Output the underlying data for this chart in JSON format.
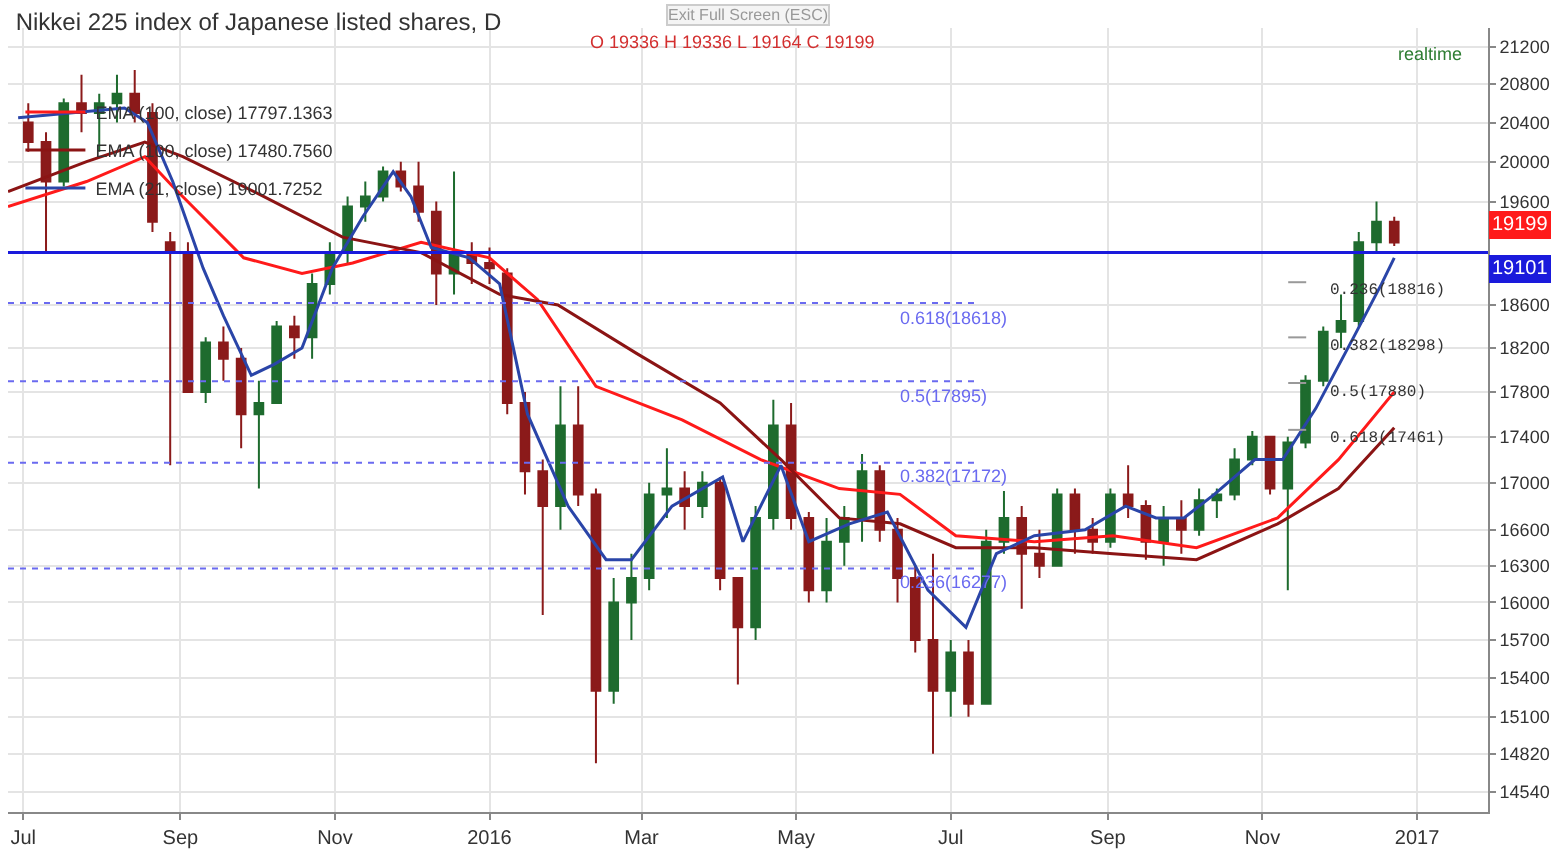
{
  "chart_data": {
    "type": "candlestick",
    "title": "Nikkei 225 index of Japanese listed shares, D",
    "annotations": [
      "O 19336 H 19336 L 19164 C 19199",
      "Exit Full Screen (ESC)",
      "realtime",
      "19199"
    ],
    "log": true,
    "grid": true,
    "legend": "top left",
    "xlim": [
      "2015-06-25",
      "2017-01-29"
    ],
    "xticks": [
      {
        "value": "2015-07-01",
        "label": "Jul"
      },
      {
        "value": "2015-09-01",
        "label": "Sep"
      },
      {
        "value": "2015-11-01",
        "label": "Nov"
      },
      {
        "value": "2016-01-01",
        "label": "2016"
      },
      {
        "value": "2016-03-01",
        "label": "Mar"
      },
      {
        "value": "2016-05-01",
        "label": "May"
      },
      {
        "value": "2016-07-01",
        "label": "Jul"
      },
      {
        "value": "2016-09-01",
        "label": "Sep"
      },
      {
        "value": "2016-11-01",
        "label": "Nov"
      },
      {
        "value": "2017-01-01",
        "label": "2017"
      }
    ],
    "ylim": [
      14390,
      21400
    ],
    "yticks": [
      14540,
      14820,
      15100,
      15400,
      15700,
      16000,
      16300,
      16600,
      17000,
      17400,
      17800,
      18200,
      18600,
      19600,
      20000,
      20400,
      20800,
      21200
    ],
    "ref_lines": [
      {
        "axis": "y",
        "value": 19101,
        "label": "19101",
        "color": "#1a1adc",
        "line_style": "solid"
      },
      {
        "axis": "y",
        "value": 18618,
        "label": "0.618(18618)",
        "color": "#6a6af0",
        "line_style": "dotted"
      },
      {
        "axis": "y",
        "value": 17895,
        "label": "0.5(17895)",
        "color": "#6a6af0",
        "line_style": "dotted"
      },
      {
        "axis": "y",
        "value": 17172,
        "label": "0.382(17172)",
        "color": "#6a6af0",
        "line_style": "dotted"
      },
      {
        "axis": "y",
        "value": 16277,
        "label": "0.236(16277)",
        "color": "#6a6af0",
        "line_style": "dotted"
      },
      {
        "axis": "y",
        "value": 18816,
        "label": "0.236(18816)",
        "color": "#999999",
        "line_style": "dashed"
      },
      {
        "axis": "y",
        "value": 18298,
        "label": "0.382(18298)",
        "color": "#999999",
        "line_style": "dashed"
      },
      {
        "axis": "y",
        "value": 17880,
        "label": "0.5(17880)",
        "color": "#999999",
        "line_style": "dashed"
      },
      {
        "axis": "y",
        "value": 17461,
        "label": "0.618(17461)",
        "color": "#999999",
        "line_style": "dashed"
      }
    ],
    "series": [
      {
        "type": "line",
        "name": "EMA (100, close) 17797.1363",
        "color": "#ff1a1a",
        "x": [
          "2015-06-25",
          "2015-07-26",
          "2015-08-18",
          "2015-08-29",
          "2015-09-26",
          "2015-10-19",
          "2015-11-08",
          "2015-12-05",
          "2016-01-01",
          "2016-01-20",
          "2016-02-12",
          "2016-03-17",
          "2016-04-17",
          "2016-05-18",
          "2016-06-11",
          "2016-07-03",
          "2016-08-03",
          "2016-09-03",
          "2016-10-06",
          "2016-11-07",
          "2016-12-01",
          "2016-12-23"
        ],
        "values": [
          19550,
          19800,
          20050,
          19750,
          19050,
          18900,
          19000,
          19200,
          19050,
          18650,
          17850,
          17550,
          17200,
          16950,
          16900,
          16550,
          16500,
          16550,
          16450,
          16700,
          17200,
          17800
        ]
      },
      {
        "type": "line",
        "name": "EMA (100, close) 17480.7560",
        "color": "#8b1414",
        "x": [
          "2015-06-25",
          "2015-07-26",
          "2015-08-18",
          "2015-09-02",
          "2015-10-04",
          "2015-11-04",
          "2015-12-05",
          "2016-01-05",
          "2016-01-28",
          "2016-02-28",
          "2016-04-01",
          "2016-04-25",
          "2016-05-18",
          "2016-06-11",
          "2016-07-03",
          "2016-08-03",
          "2016-09-03",
          "2016-10-06",
          "2016-11-07",
          "2016-12-01",
          "2016-12-23"
        ],
        "values": [
          19700,
          20000,
          20200,
          20050,
          19650,
          19250,
          19100,
          18700,
          18600,
          18150,
          17700,
          17200,
          16700,
          16650,
          16450,
          16450,
          16400,
          16350,
          16650,
          16950,
          17480
        ]
      },
      {
        "type": "line",
        "name": "EMA (21, close) 19001.7252",
        "color": "#2a45a8",
        "x": [
          "2015-06-29",
          "2015-08-10",
          "2015-08-19",
          "2015-08-29",
          "2015-09-10",
          "2015-09-18",
          "2015-09-29",
          "2015-10-08",
          "2015-10-19",
          "2015-10-31",
          "2015-11-12",
          "2015-11-24",
          "2015-12-01",
          "2015-12-09",
          "2015-12-24",
          "2016-01-05",
          "2016-01-16",
          "2016-02-01",
          "2016-02-16",
          "2016-02-26",
          "2016-03-13",
          "2016-04-02",
          "2016-04-10",
          "2016-04-25",
          "2016-05-06",
          "2016-05-22",
          "2016-06-06",
          "2016-06-22",
          "2016-07-07",
          "2016-07-19",
          "2016-08-03",
          "2016-08-23",
          "2016-09-08",
          "2016-09-20",
          "2016-10-01",
          "2016-10-13",
          "2016-10-29",
          "2016-11-09",
          "2016-11-22",
          "2016-12-07",
          "2016-12-18",
          "2016-12-23"
        ],
        "values": [
          20450,
          20550,
          20400,
          19800,
          18950,
          18500,
          17950,
          18050,
          18200,
          18950,
          19450,
          19900,
          19650,
          19150,
          19050,
          18800,
          17600,
          16800,
          16350,
          16350,
          16800,
          17050,
          16500,
          17150,
          16500,
          16650,
          16750,
          16100,
          15800,
          16400,
          16550,
          16600,
          16800,
          16700,
          16700,
          16900,
          17200,
          17200,
          17650,
          18300,
          18800,
          19050
        ]
      },
      {
        "type": "candlestick",
        "colors": [
          "#8b1a1a",
          "#8b1a1a",
          "#1e6b2e",
          "#8b1a1a",
          "#1e6b2e",
          "#1e6b2e",
          "#8b1a1a",
          "#8b1a1a",
          "#8b1a1a",
          "#8b1a1a",
          "#1e6b2e",
          "#8b1a1a",
          "#8b1a1a",
          "#1e6b2e",
          "#1e6b2e",
          "#8b1a1a",
          "#1e6b2e",
          "#1e6b2e",
          "#1e6b2e",
          "#1e6b2e",
          "#1e6b2e",
          "#8b1a1a",
          "#8b1a1a",
          "#8b1a1a",
          "#1e6b2e",
          "#8b1a1a",
          "#8b1a1a",
          "#8b1a1a",
          "#8b1a1a",
          "#8b1a1a",
          "#1e6b2e",
          "#8b1a1a",
          "#8b1a1a",
          "#1e6b2e",
          "#1e6b2e",
          "#1e6b2e",
          "#1e6b2e",
          "#8b1a1a",
          "#1e6b2e",
          "#8b1a1a",
          "#8b1a1a",
          "#1e6b2e",
          "#1e6b2e",
          "#8b1a1a",
          "#8b1a1a",
          "#1e6b2e",
          "#1e6b2e",
          "#1e6b2e",
          "#8b1a1a",
          "#8b1a1a",
          "#8b1a1a",
          "#8b1a1a",
          "#1e6b2e",
          "#8b1a1a",
          "#1e6b2e",
          "#1e6b2e",
          "#8b1a1a",
          "#8b1a1a",
          "#1e6b2e",
          "#8b1a1a",
          "#8b1a1a",
          "#1e6b2e",
          "#8b1a1a",
          "#8b1a1a",
          "#1e6b2e",
          "#8b1a1a",
          "#1e6b2e",
          "#1e6b2e",
          "#1e6b2e",
          "#1e6b2e",
          "#8b1a1a",
          "#1e6b2e",
          "#1e6b2e",
          "#1e6b2e",
          "#1e6b2e",
          "#1e6b2e",
          "#1e6b2e",
          "#8b1a1a"
        ],
        "x": [
          "2015-07-03",
          "2015-07-10",
          "2015-07-17",
          "2015-07-24",
          "2015-07-31",
          "2015-08-07",
          "2015-08-14",
          "2015-08-21",
          "2015-08-28",
          "2015-09-04",
          "2015-09-11",
          "2015-09-18",
          "2015-09-25",
          "2015-10-02",
          "2015-10-09",
          "2015-10-16",
          "2015-10-23",
          "2015-10-30",
          "2015-11-06",
          "2015-11-13",
          "2015-11-20",
          "2015-11-27",
          "2015-12-04",
          "2015-12-11",
          "2015-12-18",
          "2015-12-25",
          "2016-01-01",
          "2016-01-08",
          "2016-01-15",
          "2016-01-22",
          "2016-01-29",
          "2016-02-05",
          "2016-02-12",
          "2016-02-19",
          "2016-02-26",
          "2016-03-04",
          "2016-03-11",
          "2016-03-18",
          "2016-03-25",
          "2016-04-01",
          "2016-04-08",
          "2016-04-15",
          "2016-04-22",
          "2016-04-29",
          "2016-05-06",
          "2016-05-13",
          "2016-05-20",
          "2016-05-27",
          "2016-06-03",
          "2016-06-10",
          "2016-06-17",
          "2016-06-24",
          "2016-07-01",
          "2016-07-08",
          "2016-07-15",
          "2016-07-22",
          "2016-07-29",
          "2016-08-05",
          "2016-08-12",
          "2016-08-19",
          "2016-08-26",
          "2016-09-02",
          "2016-09-09",
          "2016-09-16",
          "2016-09-23",
          "2016-09-30",
          "2016-10-07",
          "2016-10-14",
          "2016-10-21",
          "2016-10-28",
          "2016-11-04",
          "2016-11-11",
          "2016-11-18",
          "2016-11-25",
          "2016-12-02",
          "2016-12-09",
          "2016-12-16",
          "2016-12-23"
        ],
        "ohlc": [
          [
            20400,
            20600,
            20100,
            20200
          ],
          [
            20200,
            20300,
            19100,
            19800
          ],
          [
            19800,
            20650,
            19750,
            20600
          ],
          [
            20600,
            20900,
            20300,
            20500
          ],
          [
            20500,
            20700,
            20100,
            20600
          ],
          [
            20600,
            20900,
            20400,
            20700
          ],
          [
            20700,
            20950,
            20400,
            20500
          ],
          [
            20500,
            20600,
            19300,
            19400
          ],
          [
            19200,
            19300,
            17150,
            19100
          ],
          [
            19100,
            19200,
            17800,
            17800
          ],
          [
            17800,
            18300,
            17700,
            18250
          ],
          [
            18250,
            18400,
            17900,
            18100
          ],
          [
            18100,
            18200,
            17300,
            17600
          ],
          [
            17600,
            17900,
            16950,
            17700
          ],
          [
            17700,
            18450,
            17700,
            18400
          ],
          [
            18400,
            18500,
            18100,
            18300
          ],
          [
            18300,
            18900,
            18100,
            18800
          ],
          [
            18800,
            19200,
            18700,
            19100
          ],
          [
            19100,
            19650,
            19000,
            19550
          ],
          [
            19550,
            19800,
            19400,
            19650
          ],
          [
            19650,
            19950,
            19600,
            19900
          ],
          [
            19900,
            20000,
            19700,
            19750
          ],
          [
            19750,
            20000,
            19400,
            19500
          ],
          [
            19500,
            19600,
            18600,
            18900
          ],
          [
            18900,
            19900,
            18700,
            19100
          ],
          [
            19100,
            19200,
            18800,
            19000
          ],
          [
            19000,
            19150,
            18800,
            18950
          ],
          [
            18900,
            18950,
            17600,
            17700
          ],
          [
            17700,
            17800,
            16900,
            17100
          ],
          [
            17100,
            17200,
            15900,
            16800
          ],
          [
            16800,
            17850,
            16600,
            17500
          ],
          [
            17500,
            17850,
            16800,
            16900
          ],
          [
            16900,
            16950,
            14750,
            15300
          ],
          [
            15300,
            16200,
            15200,
            16000
          ],
          [
            16000,
            16400,
            15700,
            16200
          ],
          [
            16200,
            17000,
            16100,
            16900
          ],
          [
            16900,
            17300,
            16700,
            16950
          ],
          [
            16950,
            17100,
            16600,
            16800
          ],
          [
            16800,
            17100,
            16700,
            17000
          ],
          [
            17000,
            17050,
            16100,
            16200
          ],
          [
            16200,
            16200,
            15350,
            15800
          ],
          [
            15800,
            16800,
            15700,
            16700
          ],
          [
            16700,
            17730,
            16600,
            17500
          ],
          [
            17500,
            17700,
            16600,
            16700
          ],
          [
            16700,
            16750,
            16000,
            16100
          ],
          [
            16100,
            16700,
            16000,
            16500
          ],
          [
            16500,
            16800,
            16300,
            16700
          ],
          [
            16700,
            17250,
            16500,
            17100
          ],
          [
            17100,
            17150,
            16500,
            16600
          ],
          [
            16600,
            16700,
            16000,
            16200
          ],
          [
            16200,
            16300,
            15600,
            15700
          ],
          [
            15700,
            16400,
            14820,
            15300
          ],
          [
            15300,
            15700,
            15100,
            15600
          ],
          [
            15600,
            15700,
            15100,
            15200
          ],
          [
            15200,
            16600,
            15200,
            16500
          ],
          [
            16500,
            16930,
            16400,
            16700
          ],
          [
            16700,
            16800,
            15950,
            16400
          ],
          [
            16400,
            16600,
            16200,
            16300
          ],
          [
            16300,
            16950,
            16300,
            16900
          ],
          [
            16900,
            16950,
            16400,
            16600
          ],
          [
            16600,
            16700,
            16400,
            16500
          ],
          [
            16500,
            16950,
            16450,
            16900
          ],
          [
            16900,
            17150,
            16700,
            16800
          ],
          [
            16800,
            16850,
            16350,
            16500
          ],
          [
            16500,
            16800,
            16300,
            16700
          ],
          [
            16700,
            16850,
            16400,
            16600
          ],
          [
            16600,
            16950,
            16550,
            16850
          ],
          [
            16850,
            16950,
            16700,
            16900
          ],
          [
            16900,
            17300,
            16850,
            17200
          ],
          [
            17200,
            17450,
            17150,
            17400
          ],
          [
            17400,
            17400,
            16900,
            16950
          ],
          [
            16950,
            17400,
            16100,
            17350
          ],
          [
            17350,
            17950,
            17300,
            17900
          ],
          [
            17900,
            18400,
            17850,
            18350
          ],
          [
            18350,
            18700,
            18200,
            18450
          ],
          [
            18450,
            19300,
            18400,
            19200
          ],
          [
            19200,
            19600,
            19100,
            19400
          ],
          [
            19400,
            19450,
            19164,
            19199
          ]
        ]
      }
    ]
  }
}
